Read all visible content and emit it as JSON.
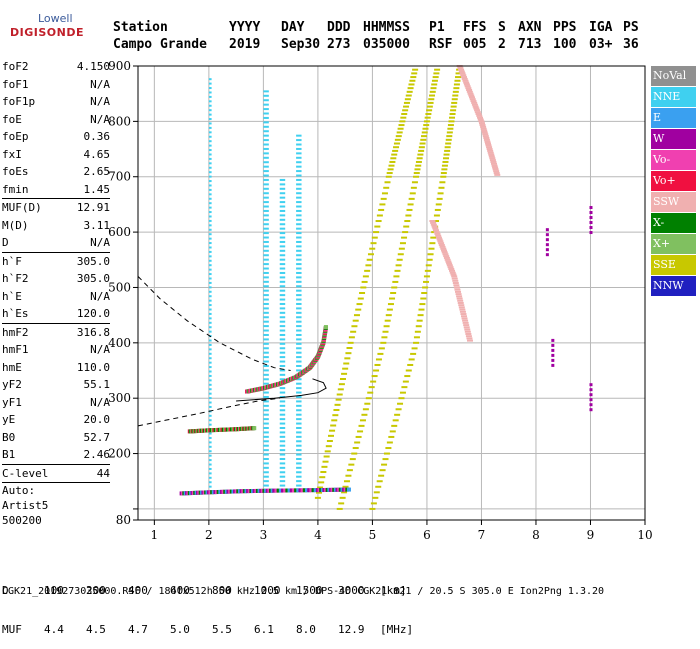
{
  "logo": {
    "line1": "Lowell",
    "line2": "DIGISONDE"
  },
  "header": {
    "labels": [
      "Station",
      "YYYY",
      "DAY",
      "DDD",
      "HHMMSS",
      "P1",
      "FFS",
      "S",
      "AXN",
      "PPS",
      "IGA",
      "PS"
    ],
    "values": [
      "Campo Grande",
      "2019",
      "Sep30",
      "273",
      "035000",
      "RSF",
      "005",
      "2",
      "713",
      "100",
      "03+",
      "36"
    ]
  },
  "params": [
    {
      "label": "foF2",
      "value": "4.150"
    },
    {
      "label": "foF1",
      "value": "N/A"
    },
    {
      "label": "foF1p",
      "value": "N/A"
    },
    {
      "label": "foE",
      "value": "N/A"
    },
    {
      "label": "foEp",
      "value": "0.36"
    },
    {
      "label": "fxI",
      "value": "4.65"
    },
    {
      "label": "foEs",
      "value": "2.65"
    },
    {
      "label": "fmin",
      "value": "1.45"
    },
    {
      "sep": true
    },
    {
      "label": "MUF(D)",
      "value": "12.91"
    },
    {
      "label": "M(D)",
      "value": "3.11"
    },
    {
      "label": "D",
      "value": "N/A"
    },
    {
      "sep": true
    },
    {
      "label": "h`F",
      "value": "305.0"
    },
    {
      "label": "h`F2",
      "value": "305.0"
    },
    {
      "label": "h`E",
      "value": "N/A"
    },
    {
      "label": "h`Es",
      "value": "120.0"
    },
    {
      "sep": true
    },
    {
      "label": "hmF2",
      "value": "316.8"
    },
    {
      "label": "hmF1",
      "value": "N/A"
    },
    {
      "label": "hmE",
      "value": "110.0"
    },
    {
      "label": "yF2",
      "value": "55.1"
    },
    {
      "label": "yF1",
      "value": "N/A"
    },
    {
      "label": "yE",
      "value": "20.0"
    },
    {
      "label": "B0",
      "value": "52.7"
    },
    {
      "label": "B1",
      "value": "2.46"
    },
    {
      "sep": true
    },
    {
      "label": "C-level",
      "value": "44"
    },
    {
      "sep": true
    }
  ],
  "auto": [
    "Auto:",
    "Artist5",
    "500200"
  ],
  "legend": [
    {
      "label": "NoVal",
      "color": "#909090"
    },
    {
      "label": "NNE",
      "color": "#3fd0f0"
    },
    {
      "label": "E",
      "color": "#3aa0f0"
    },
    {
      "label": "W",
      "color": "#a000a0"
    },
    {
      "label": "Vo-",
      "color": "#f040b0"
    },
    {
      "label": "Vo+",
      "color": "#f01040"
    },
    {
      "label": "SSW",
      "color": "#f0b0b0"
    },
    {
      "label": "X-",
      "color": "#008000"
    },
    {
      "label": "X+",
      "color": "#80c060"
    },
    {
      "label": "SSE",
      "color": "#c8c800"
    },
    {
      "label": "NNW",
      "color": "#2020c0"
    }
  ],
  "footer": {
    "d_label": "D",
    "d_values": [
      "100",
      "200",
      "400",
      "600",
      "800",
      "1000",
      "1500",
      "3000",
      "[km]"
    ],
    "muf_label": "MUF",
    "muf_values": [
      "4.4",
      "4.5",
      "4.7",
      "5.0",
      "5.5",
      "6.1",
      "8.0",
      "12.9",
      "[MHz]"
    ],
    "line": "CGK21_2019273035000.RSF / 184fx512h 50 kHz 2.5 km / DPS-4D CGK21 821 / 20.5 S 305.0 E Ion2Png 1.3.20"
  },
  "chart_data": {
    "type": "scatter",
    "xlim": [
      0.7,
      10.0
    ],
    "ylim": [
      80,
      900
    ],
    "x_ticks": [
      1,
      2,
      3,
      4,
      5,
      6,
      7,
      8,
      9,
      10
    ],
    "y_ticks": [
      80,
      100,
      200,
      300,
      400,
      500,
      600,
      700,
      800,
      900
    ],
    "y_tick_labels": [
      "80",
      "200",
      "300",
      "400",
      "500",
      "600",
      "700",
      "800",
      "900"
    ],
    "grid": true,
    "legend_position": "right",
    "traces": [
      {
        "name": "F2 trace",
        "colors": [
          "#f01040",
          "#f040b0",
          "#008000",
          "#80c060"
        ],
        "points": [
          [
            2.7,
            312
          ],
          [
            3.0,
            318
          ],
          [
            3.3,
            326
          ],
          [
            3.6,
            338
          ],
          [
            3.85,
            355
          ],
          [
            4.0,
            375
          ],
          [
            4.1,
            400
          ],
          [
            4.15,
            430
          ]
        ]
      },
      {
        "name": "Es trace",
        "colors": [
          "#a000a0",
          "#f040b0",
          "#008000",
          "#3aa0f0"
        ],
        "points": [
          [
            1.5,
            128
          ],
          [
            2.0,
            130
          ],
          [
            2.6,
            132
          ],
          [
            3.2,
            133
          ],
          [
            4.0,
            134
          ],
          [
            4.6,
            135
          ]
        ]
      },
      {
        "name": "low layer",
        "colors": [
          "#f01040",
          "#008000",
          "#80c060"
        ],
        "points": [
          [
            1.65,
            240
          ],
          [
            2.0,
            242
          ],
          [
            2.5,
            244
          ],
          [
            2.85,
            246
          ]
        ]
      }
    ],
    "profile_solid": [
      [
        2.5,
        295
      ],
      [
        3.2,
        300
      ],
      [
        3.7,
        305
      ],
      [
        4.0,
        310
      ],
      [
        4.15,
        318
      ],
      [
        4.1,
        328
      ],
      [
        3.9,
        335
      ]
    ],
    "profile_dashed": [
      [
        0.7,
        250
      ],
      [
        1.2,
        260
      ],
      [
        1.8,
        272
      ],
      [
        2.4,
        285
      ],
      [
        2.9,
        295
      ],
      [
        3.3,
        300
      ]
    ],
    "profile_dashed_upper": [
      [
        0.7,
        520
      ],
      [
        1.1,
        480
      ],
      [
        1.6,
        440
      ],
      [
        2.2,
        400
      ],
      [
        2.8,
        370
      ],
      [
        3.2,
        355
      ],
      [
        3.5,
        350
      ]
    ],
    "echo_bands": [
      {
        "color": "#3fd0f0",
        "x0": 2.0,
        "x1": 2.05,
        "y0": 130,
        "y1": 880
      },
      {
        "color": "#3fd0f0",
        "x0": 3.0,
        "x1": 3.1,
        "y0": 140,
        "y1": 860
      },
      {
        "color": "#3fd0f0",
        "x0": 3.3,
        "x1": 3.4,
        "y0": 140,
        "y1": 700
      },
      {
        "color": "#3fd0f0",
        "x0": 3.6,
        "x1": 3.7,
        "y0": 140,
        "y1": 780
      }
    ],
    "sse_diagonals": [
      {
        "color": "#c8c800",
        "points": [
          [
            4.0,
            120
          ],
          [
            4.6,
            400
          ],
          [
            5.3,
            700
          ],
          [
            5.8,
            900
          ]
        ]
      },
      {
        "color": "#c8c800",
        "points": [
          [
            4.4,
            100
          ],
          [
            5.2,
            400
          ],
          [
            5.8,
            700
          ],
          [
            6.2,
            900
          ]
        ]
      },
      {
        "color": "#c8c800",
        "points": [
          [
            5.0,
            100
          ],
          [
            5.8,
            400
          ],
          [
            6.3,
            700
          ],
          [
            6.6,
            900
          ]
        ]
      }
    ],
    "ssw_diagonals": [
      {
        "color": "#f0b0b0",
        "points": [
          [
            6.1,
            620
          ],
          [
            6.5,
            520
          ],
          [
            6.8,
            400
          ]
        ]
      },
      {
        "color": "#f0b0b0",
        "points": [
          [
            6.6,
            900
          ],
          [
            7.0,
            800
          ],
          [
            7.3,
            700
          ]
        ]
      }
    ],
    "w_marks": [
      {
        "color": "#a000a0",
        "x": 8.2,
        "y": 580
      },
      {
        "color": "#a000a0",
        "x": 8.3,
        "y": 380
      },
      {
        "color": "#a000a0",
        "x": 9.0,
        "y": 300
      },
      {
        "color": "#a000a0",
        "x": 9.0,
        "y": 620
      }
    ]
  }
}
